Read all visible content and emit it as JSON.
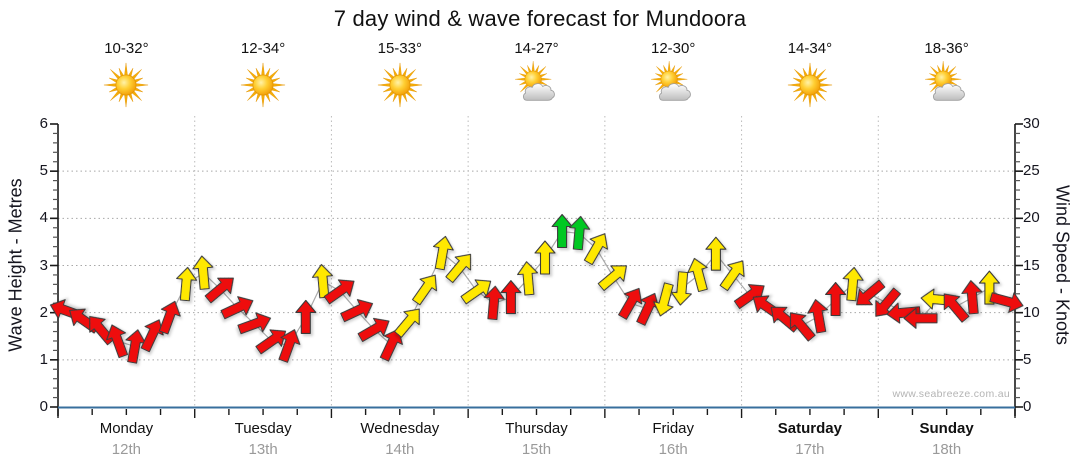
{
  "title": "7 day wind & wave forecast for Mundoora",
  "watermark": "www.seabreeze.com.au",
  "left_axis": {
    "label": "Wave Height - Metres",
    "ticks": [
      0,
      1,
      2,
      3,
      4,
      5,
      6
    ]
  },
  "right_axis": {
    "label": "Wind Speed - Knots",
    "ticks": [
      0,
      5,
      10,
      15,
      20,
      25,
      30
    ]
  },
  "days": [
    {
      "name": "Monday",
      "date": "12th",
      "temp": "10-32°",
      "icon": "sun",
      "weekend": false
    },
    {
      "name": "Tuesday",
      "date": "13th",
      "temp": "12-34°",
      "icon": "sun",
      "weekend": false
    },
    {
      "name": "Wednesday",
      "date": "14th",
      "temp": "15-33°",
      "icon": "sun",
      "weekend": false
    },
    {
      "name": "Thursday",
      "date": "15th",
      "temp": "14-27°",
      "icon": "sun-cloud",
      "weekend": false
    },
    {
      "name": "Friday",
      "date": "16th",
      "temp": "12-30°",
      "icon": "sun-cloud",
      "weekend": false
    },
    {
      "name": "Saturday",
      "date": "17th",
      "temp": "14-34°",
      "icon": "sun",
      "weekend": true
    },
    {
      "name": "Sunday",
      "date": "18th",
      "temp": "18-36°",
      "icon": "sun-cloud",
      "weekend": true
    }
  ],
  "chart_data": {
    "type": "wind_arrow_timeseries",
    "title": "7 day wind & wave forecast for Mundoora",
    "x": {
      "categories": [
        "Monday 12th",
        "Tuesday 13th",
        "Wednesday 14th",
        "Thursday 15th",
        "Friday 16th",
        "Saturday 17th",
        "Sunday 18th"
      ],
      "points_per_day": 8,
      "minor_ticks_per_day": 4
    },
    "y_left": {
      "label": "Wave Height - Metres",
      "range": [
        0,
        6
      ],
      "gridlines": [
        1,
        2,
        3,
        4,
        5
      ]
    },
    "y_right": {
      "label": "Wind Speed - Knots",
      "range": [
        0,
        30
      ],
      "gridlines": [
        5,
        10,
        15,
        20,
        25
      ]
    },
    "legend_colors": {
      "r": "#ee0c0c",
      "y": "#ffe800",
      "g": "#00c822"
    },
    "color_meaning": {
      "r": "light wind",
      "y": "moderate wind",
      "g": "fresh wind"
    },
    "points": [
      {
        "d": 0,
        "s": 0,
        "kt": 10.2,
        "dir": -70,
        "c": "r"
      },
      {
        "d": 0,
        "s": 1,
        "kt": 9.2,
        "dir": -55,
        "c": "r"
      },
      {
        "d": 0,
        "s": 2,
        "kt": 8.2,
        "dir": -40,
        "c": "r"
      },
      {
        "d": 0,
        "s": 3,
        "kt": 7.0,
        "dir": -20,
        "c": "r"
      },
      {
        "d": 0,
        "s": 4,
        "kt": 6.4,
        "dir": 10,
        "c": "r"
      },
      {
        "d": 0,
        "s": 5,
        "kt": 7.6,
        "dir": 25,
        "c": "r"
      },
      {
        "d": 0,
        "s": 6,
        "kt": 9.5,
        "dir": 20,
        "c": "r"
      },
      {
        "d": 0,
        "s": 7,
        "kt": 13.0,
        "dir": 5,
        "c": "y"
      },
      {
        "d": 1,
        "s": 0,
        "kt": 14.2,
        "dir": -5,
        "c": "y"
      },
      {
        "d": 1,
        "s": 1,
        "kt": 12.5,
        "dir": 50,
        "c": "r"
      },
      {
        "d": 1,
        "s": 2,
        "kt": 10.5,
        "dir": 65,
        "c": "r"
      },
      {
        "d": 1,
        "s": 3,
        "kt": 8.8,
        "dir": 70,
        "c": "r"
      },
      {
        "d": 1,
        "s": 4,
        "kt": 7.0,
        "dir": 55,
        "c": "r"
      },
      {
        "d": 1,
        "s": 5,
        "kt": 6.5,
        "dir": 20,
        "c": "r"
      },
      {
        "d": 1,
        "s": 6,
        "kt": 9.5,
        "dir": 0,
        "c": "r"
      },
      {
        "d": 1,
        "s": 7,
        "kt": 13.3,
        "dir": -5,
        "c": "y"
      },
      {
        "d": 2,
        "s": 0,
        "kt": 12.3,
        "dir": 55,
        "c": "r"
      },
      {
        "d": 2,
        "s": 1,
        "kt": 10.2,
        "dir": 65,
        "c": "r"
      },
      {
        "d": 2,
        "s": 2,
        "kt": 8.2,
        "dir": 60,
        "c": "r"
      },
      {
        "d": 2,
        "s": 3,
        "kt": 6.6,
        "dir": 25,
        "c": "r"
      },
      {
        "d": 2,
        "s": 4,
        "kt": 9.0,
        "dir": 40,
        "c": "y"
      },
      {
        "d": 2,
        "s": 5,
        "kt": 12.5,
        "dir": 35,
        "c": "y"
      },
      {
        "d": 2,
        "s": 6,
        "kt": 16.3,
        "dir": 10,
        "c": "y"
      },
      {
        "d": 2,
        "s": 7,
        "kt": 14.8,
        "dir": 40,
        "c": "y"
      },
      {
        "d": 3,
        "s": 0,
        "kt": 12.3,
        "dir": 55,
        "c": "y"
      },
      {
        "d": 3,
        "s": 1,
        "kt": 11.0,
        "dir": 5,
        "c": "r"
      },
      {
        "d": 3,
        "s": 2,
        "kt": 11.6,
        "dir": 0,
        "c": "r"
      },
      {
        "d": 3,
        "s": 3,
        "kt": 13.6,
        "dir": -5,
        "c": "y"
      },
      {
        "d": 3,
        "s": 4,
        "kt": 15.8,
        "dir": 0,
        "c": "y"
      },
      {
        "d": 3,
        "s": 5,
        "kt": 18.6,
        "dir": 0,
        "c": "g"
      },
      {
        "d": 3,
        "s": 6,
        "kt": 18.4,
        "dir": 5,
        "c": "g"
      },
      {
        "d": 3,
        "s": 7,
        "kt": 16.8,
        "dir": 30,
        "c": "y"
      },
      {
        "d": 4,
        "s": 0,
        "kt": 13.8,
        "dir": 50,
        "c": "y"
      },
      {
        "d": 4,
        "s": 1,
        "kt": 11.0,
        "dir": 30,
        "c": "r"
      },
      {
        "d": 4,
        "s": 2,
        "kt": 10.4,
        "dir": 25,
        "c": "r"
      },
      {
        "d": 4,
        "s": 3,
        "kt": 11.4,
        "dir": 195,
        "c": "y"
      },
      {
        "d": 4,
        "s": 4,
        "kt": 12.6,
        "dir": 185,
        "c": "y"
      },
      {
        "d": 4,
        "s": 5,
        "kt": 14.0,
        "dir": -15,
        "c": "y"
      },
      {
        "d": 4,
        "s": 6,
        "kt": 16.2,
        "dir": 0,
        "c": "y"
      },
      {
        "d": 4,
        "s": 7,
        "kt": 14.0,
        "dir": 35,
        "c": "y"
      },
      {
        "d": 5,
        "s": 0,
        "kt": 11.8,
        "dir": 55,
        "c": "r"
      },
      {
        "d": 5,
        "s": 1,
        "kt": 10.6,
        "dir": -55,
        "c": "r"
      },
      {
        "d": 5,
        "s": 2,
        "kt": 9.4,
        "dir": -50,
        "c": "r"
      },
      {
        "d": 5,
        "s": 3,
        "kt": 8.6,
        "dir": -40,
        "c": "r"
      },
      {
        "d": 5,
        "s": 4,
        "kt": 9.6,
        "dir": -10,
        "c": "r"
      },
      {
        "d": 5,
        "s": 5,
        "kt": 11.4,
        "dir": 0,
        "c": "r"
      },
      {
        "d": 5,
        "s": 6,
        "kt": 13.0,
        "dir": 5,
        "c": "y"
      },
      {
        "d": 5,
        "s": 7,
        "kt": 12.0,
        "dir": -130,
        "c": "r"
      },
      {
        "d": 6,
        "s": 0,
        "kt": 11.0,
        "dir": -140,
        "c": "r"
      },
      {
        "d": 6,
        "s": 1,
        "kt": 10.0,
        "dir": -95,
        "c": "r"
      },
      {
        "d": 6,
        "s": 2,
        "kt": 9.4,
        "dir": -90,
        "c": "r"
      },
      {
        "d": 6,
        "s": 3,
        "kt": 11.4,
        "dir": -85,
        "c": "y"
      },
      {
        "d": 6,
        "s": 4,
        "kt": 10.6,
        "dir": -40,
        "c": "r"
      },
      {
        "d": 6,
        "s": 5,
        "kt": 11.6,
        "dir": -5,
        "c": "r"
      },
      {
        "d": 6,
        "s": 6,
        "kt": 12.6,
        "dir": 0,
        "c": "y"
      },
      {
        "d": 6,
        "s": 7,
        "kt": 11.2,
        "dir": 105,
        "c": "r"
      }
    ]
  }
}
